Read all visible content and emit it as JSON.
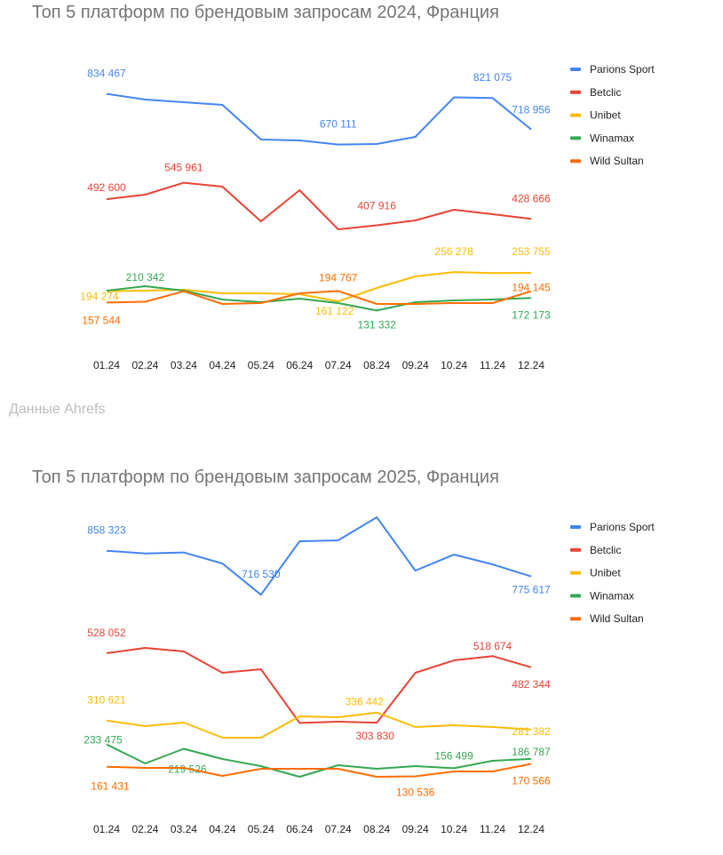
{
  "source_note": "Данные Ahrefs",
  "chart_data": [
    {
      "type": "line",
      "title": "Топ 5 платформ по брендовым запросам 2024, Франция",
      "categories": [
        "01.24",
        "02.24",
        "03.24",
        "04.24",
        "05.24",
        "06.24",
        "07.24",
        "08.24",
        "09.24",
        "10.24",
        "11.24",
        "12.24"
      ],
      "ylim": [
        0,
        1140000
      ],
      "grid": false,
      "legend": "right",
      "series": [
        {
          "name": "Parions Sport",
          "color": "#4285F4",
          "values": [
            834467,
            815900,
            807200,
            798600,
            686200,
            683300,
            670111,
            671700,
            694800,
            823000,
            821075,
            718956
          ],
          "labels": [
            0,
            6,
            10,
            11
          ]
        },
        {
          "name": "Betclic",
          "color": "#EA4335",
          "values": [
            492600,
            507400,
            545961,
            533400,
            420900,
            521800,
            395000,
            407916,
            423800,
            458400,
            444000,
            428666
          ],
          "labels": [
            0,
            2,
            7,
            11
          ]
        },
        {
          "name": "Unibet",
          "color": "#FBBC04",
          "values": [
            194274,
            196000,
            199000,
            187400,
            187400,
            184500,
            161122,
            204700,
            242200,
            256278,
            253000,
            253755
          ],
          "labels": [
            0,
            6,
            9,
            11
          ]
        },
        {
          "name": "Winamax",
          "color": "#34A853",
          "values": [
            196000,
            210342,
            196000,
            167200,
            158600,
            170100,
            155700,
            131332,
            158600,
            164300,
            167200,
            172173
          ],
          "labels": [
            1,
            7,
            11
          ]
        },
        {
          "name": "Wild Sultan",
          "color": "#FF6D01",
          "values": [
            157544,
            160000,
            194000,
            152800,
            155700,
            187400,
            194767,
            152800,
            152800,
            155700,
            155700,
            194145
          ],
          "labels": [
            0,
            6,
            11
          ]
        }
      ]
    },
    {
      "type": "line",
      "title": "Топ 5 платформ по брендовым запросам 2025, Франция",
      "categories": [
        "01.24",
        "02.24",
        "03.24",
        "04.24",
        "05.24",
        "06.24",
        "07.24",
        "08.24",
        "09.24",
        "10.24",
        "11.24",
        "12.24"
      ],
      "ylim": [
        0,
        1090000
      ],
      "grid": false,
      "legend": "right",
      "series": [
        {
          "name": "Parions Sport",
          "color": "#4285F4",
          "values": [
            858323,
            849700,
            852800,
            817400,
            716530,
            889100,
            891900,
            966500,
            794400,
            846000,
            814500,
            775617
          ],
          "labels": [
            0,
            4,
            11
          ]
        },
        {
          "name": "Betclic",
          "color": "#EA4335",
          "values": [
            528052,
            544900,
            533400,
            464600,
            476100,
            303000,
            306900,
            303830,
            464600,
            504800,
            518674,
            482344
          ],
          "labels": [
            0,
            7,
            10,
            11
          ]
        },
        {
          "name": "Unibet",
          "color": "#FBBC04",
          "values": [
            310621,
            292500,
            304000,
            255300,
            255300,
            324100,
            321200,
            336442,
            289700,
            295400,
            289700,
            281382
          ],
          "labels": [
            0,
            7,
            11
          ]
        },
        {
          "name": "Winamax",
          "color": "#34A853",
          "values": [
            233475,
            172100,
            219526,
            186400,
            163500,
            129100,
            166300,
            154900,
            163500,
            156499,
            180700,
            186787
          ],
          "labels": [
            0,
            2,
            9,
            11
          ]
        },
        {
          "name": "Wild Sultan",
          "color": "#FF6D01",
          "values": [
            161431,
            157700,
            157700,
            131900,
            155000,
            155000,
            155000,
            129100,
            130536,
            146300,
            146300,
            170566
          ],
          "labels": [
            0,
            8,
            11
          ]
        }
      ]
    }
  ]
}
